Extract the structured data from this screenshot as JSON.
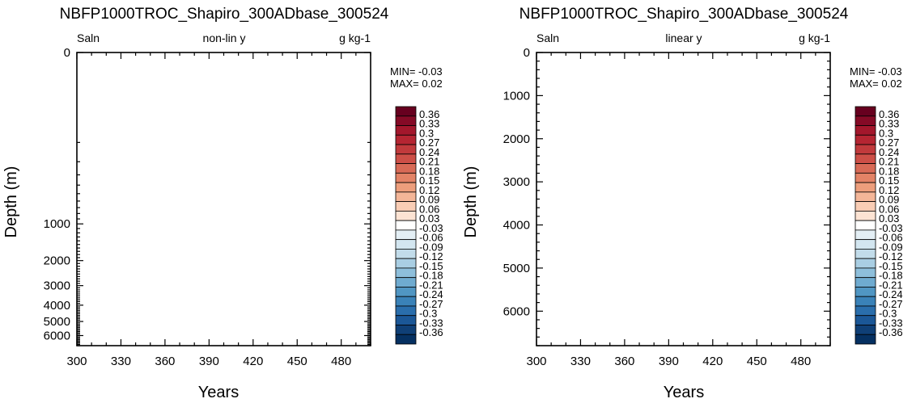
{
  "chart_data": [
    {
      "type": "heatmap",
      "title": "NBFP1000TROC_Shapiro_300ADbase_300524",
      "left_label": "Saln",
      "center_label": "non-lin y",
      "right_label": "g kg-1",
      "xlabel": "Years",
      "ylabel": "Depth (m)",
      "xlim": [
        300,
        500
      ],
      "ylim": [
        6800,
        0
      ],
      "y_scale": "non-linear",
      "x_ticks": [
        300,
        330,
        360,
        390,
        420,
        450,
        480
      ],
      "y_ticks": [
        0,
        1000,
        2000,
        3000,
        4000,
        5000,
        6000
      ],
      "min_text": "MIN= -0.03",
      "max_text": "MAX=  0.02",
      "data_min": -0.03,
      "data_max": 0.02,
      "field": "empty",
      "colorbar": {
        "labels": [
          "0.36",
          "0.33",
          "0.3",
          "0.27",
          "0.24",
          "0.21",
          "0.18",
          "0.15",
          "0.12",
          "0.09",
          "0.06",
          "0.03",
          "-0.03",
          "-0.06",
          "-0.09",
          "-0.12",
          "-0.15",
          "-0.18",
          "-0.21",
          "-0.24",
          "-0.27",
          "-0.3",
          "-0.33",
          "-0.36"
        ],
        "colors": [
          "#67001f",
          "#850a26",
          "#a3172c",
          "#b52532",
          "#c13a3c",
          "#cd4f47",
          "#d86a56",
          "#e38366",
          "#ed9e7c",
          "#f4b698",
          "#f9cdb5",
          "#fce3d3",
          "#ffffff",
          "#e4eff5",
          "#d3e6f0",
          "#c2dcea",
          "#a9cee3",
          "#8ebfdb",
          "#6fabd0",
          "#5096c3",
          "#3a82b8",
          "#2a6eac",
          "#1b5797",
          "#0f3f76",
          "#053061"
        ]
      }
    },
    {
      "type": "heatmap",
      "title": "NBFP1000TROC_Shapiro_300ADbase_300524",
      "left_label": "Saln",
      "center_label": "linear y",
      "right_label": "g kg-1",
      "xlabel": "Years",
      "ylabel": "Depth (m)",
      "xlim": [
        300,
        500
      ],
      "ylim": [
        6800,
        0
      ],
      "y_scale": "linear",
      "x_ticks": [
        300,
        330,
        360,
        390,
        420,
        450,
        480
      ],
      "y_ticks": [
        0,
        1000,
        2000,
        3000,
        4000,
        5000,
        6000
      ],
      "min_text": "MIN= -0.03",
      "max_text": "MAX=  0.02",
      "data_min": -0.03,
      "data_max": 0.02,
      "field": "empty",
      "colorbar": {
        "labels": [
          "0.36",
          "0.33",
          "0.3",
          "0.27",
          "0.24",
          "0.21",
          "0.18",
          "0.15",
          "0.12",
          "0.09",
          "0.06",
          "0.03",
          "-0.03",
          "-0.06",
          "-0.09",
          "-0.12",
          "-0.15",
          "-0.18",
          "-0.21",
          "-0.24",
          "-0.27",
          "-0.3",
          "-0.33",
          "-0.36"
        ],
        "colors": [
          "#67001f",
          "#850a26",
          "#a3172c",
          "#b52532",
          "#c13a3c",
          "#cd4f47",
          "#d86a56",
          "#e38366",
          "#ed9e7c",
          "#f4b698",
          "#f9cdb5",
          "#fce3d3",
          "#ffffff",
          "#e4eff5",
          "#d3e6f0",
          "#c2dcea",
          "#a9cee3",
          "#8ebfdb",
          "#6fabd0",
          "#5096c3",
          "#3a82b8",
          "#2a6eac",
          "#1b5797",
          "#0f3f76",
          "#053061"
        ]
      }
    }
  ]
}
